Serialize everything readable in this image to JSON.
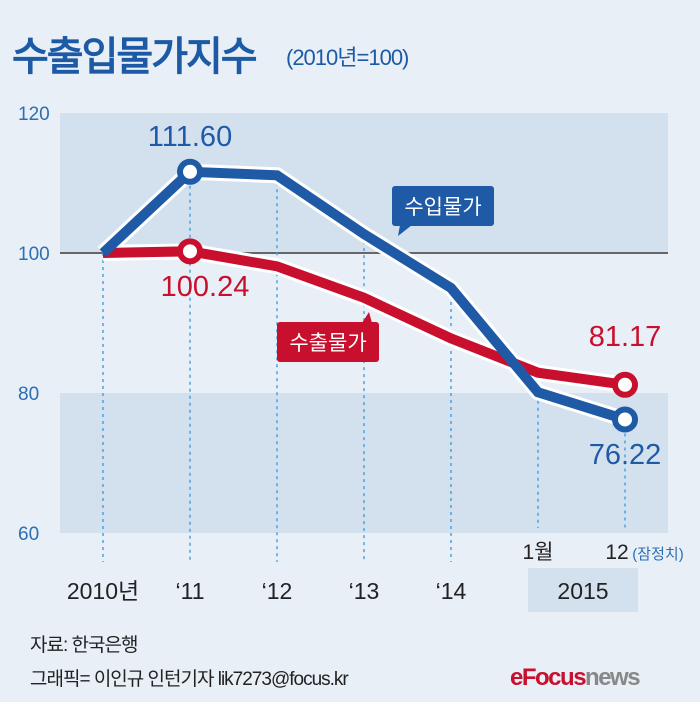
{
  "header": {
    "title": "수출입물가지수",
    "subtitle": "(2010년=100)"
  },
  "chart_data": {
    "type": "line",
    "title": "수출입물가지수",
    "subtitle": "(2010년=100)",
    "categories": [
      "2010년",
      "‘11",
      "‘12",
      "‘13",
      "‘14",
      "1월",
      "12"
    ],
    "category_note": "(잠정치)",
    "group_label": "2015",
    "ylim": [
      60,
      120
    ],
    "yticks": [
      60,
      80,
      100,
      120
    ],
    "series": [
      {
        "name": "수입물가",
        "color": "#1f5aa6",
        "values": [
          100,
          111.6,
          111.1,
          102.7,
          95.0,
          80.1,
          76.22
        ],
        "labels": {
          "1": "111.60",
          "6": "76.22"
        }
      },
      {
        "name": "수출물가",
        "color": "#c8102e",
        "values": [
          100,
          100.24,
          98.1,
          93.6,
          87.8,
          82.9,
          81.17
        ],
        "labels": {
          "1": "100.24",
          "6": "81.17"
        }
      }
    ]
  },
  "footer": {
    "source": "자료: 한국은행",
    "credit": "그래픽= 이인규 인턴기자 lik7273@focus.kr",
    "logo_a": "Focus",
    "logo_b": "news",
    "logo_icon": "e-logo-icon"
  }
}
